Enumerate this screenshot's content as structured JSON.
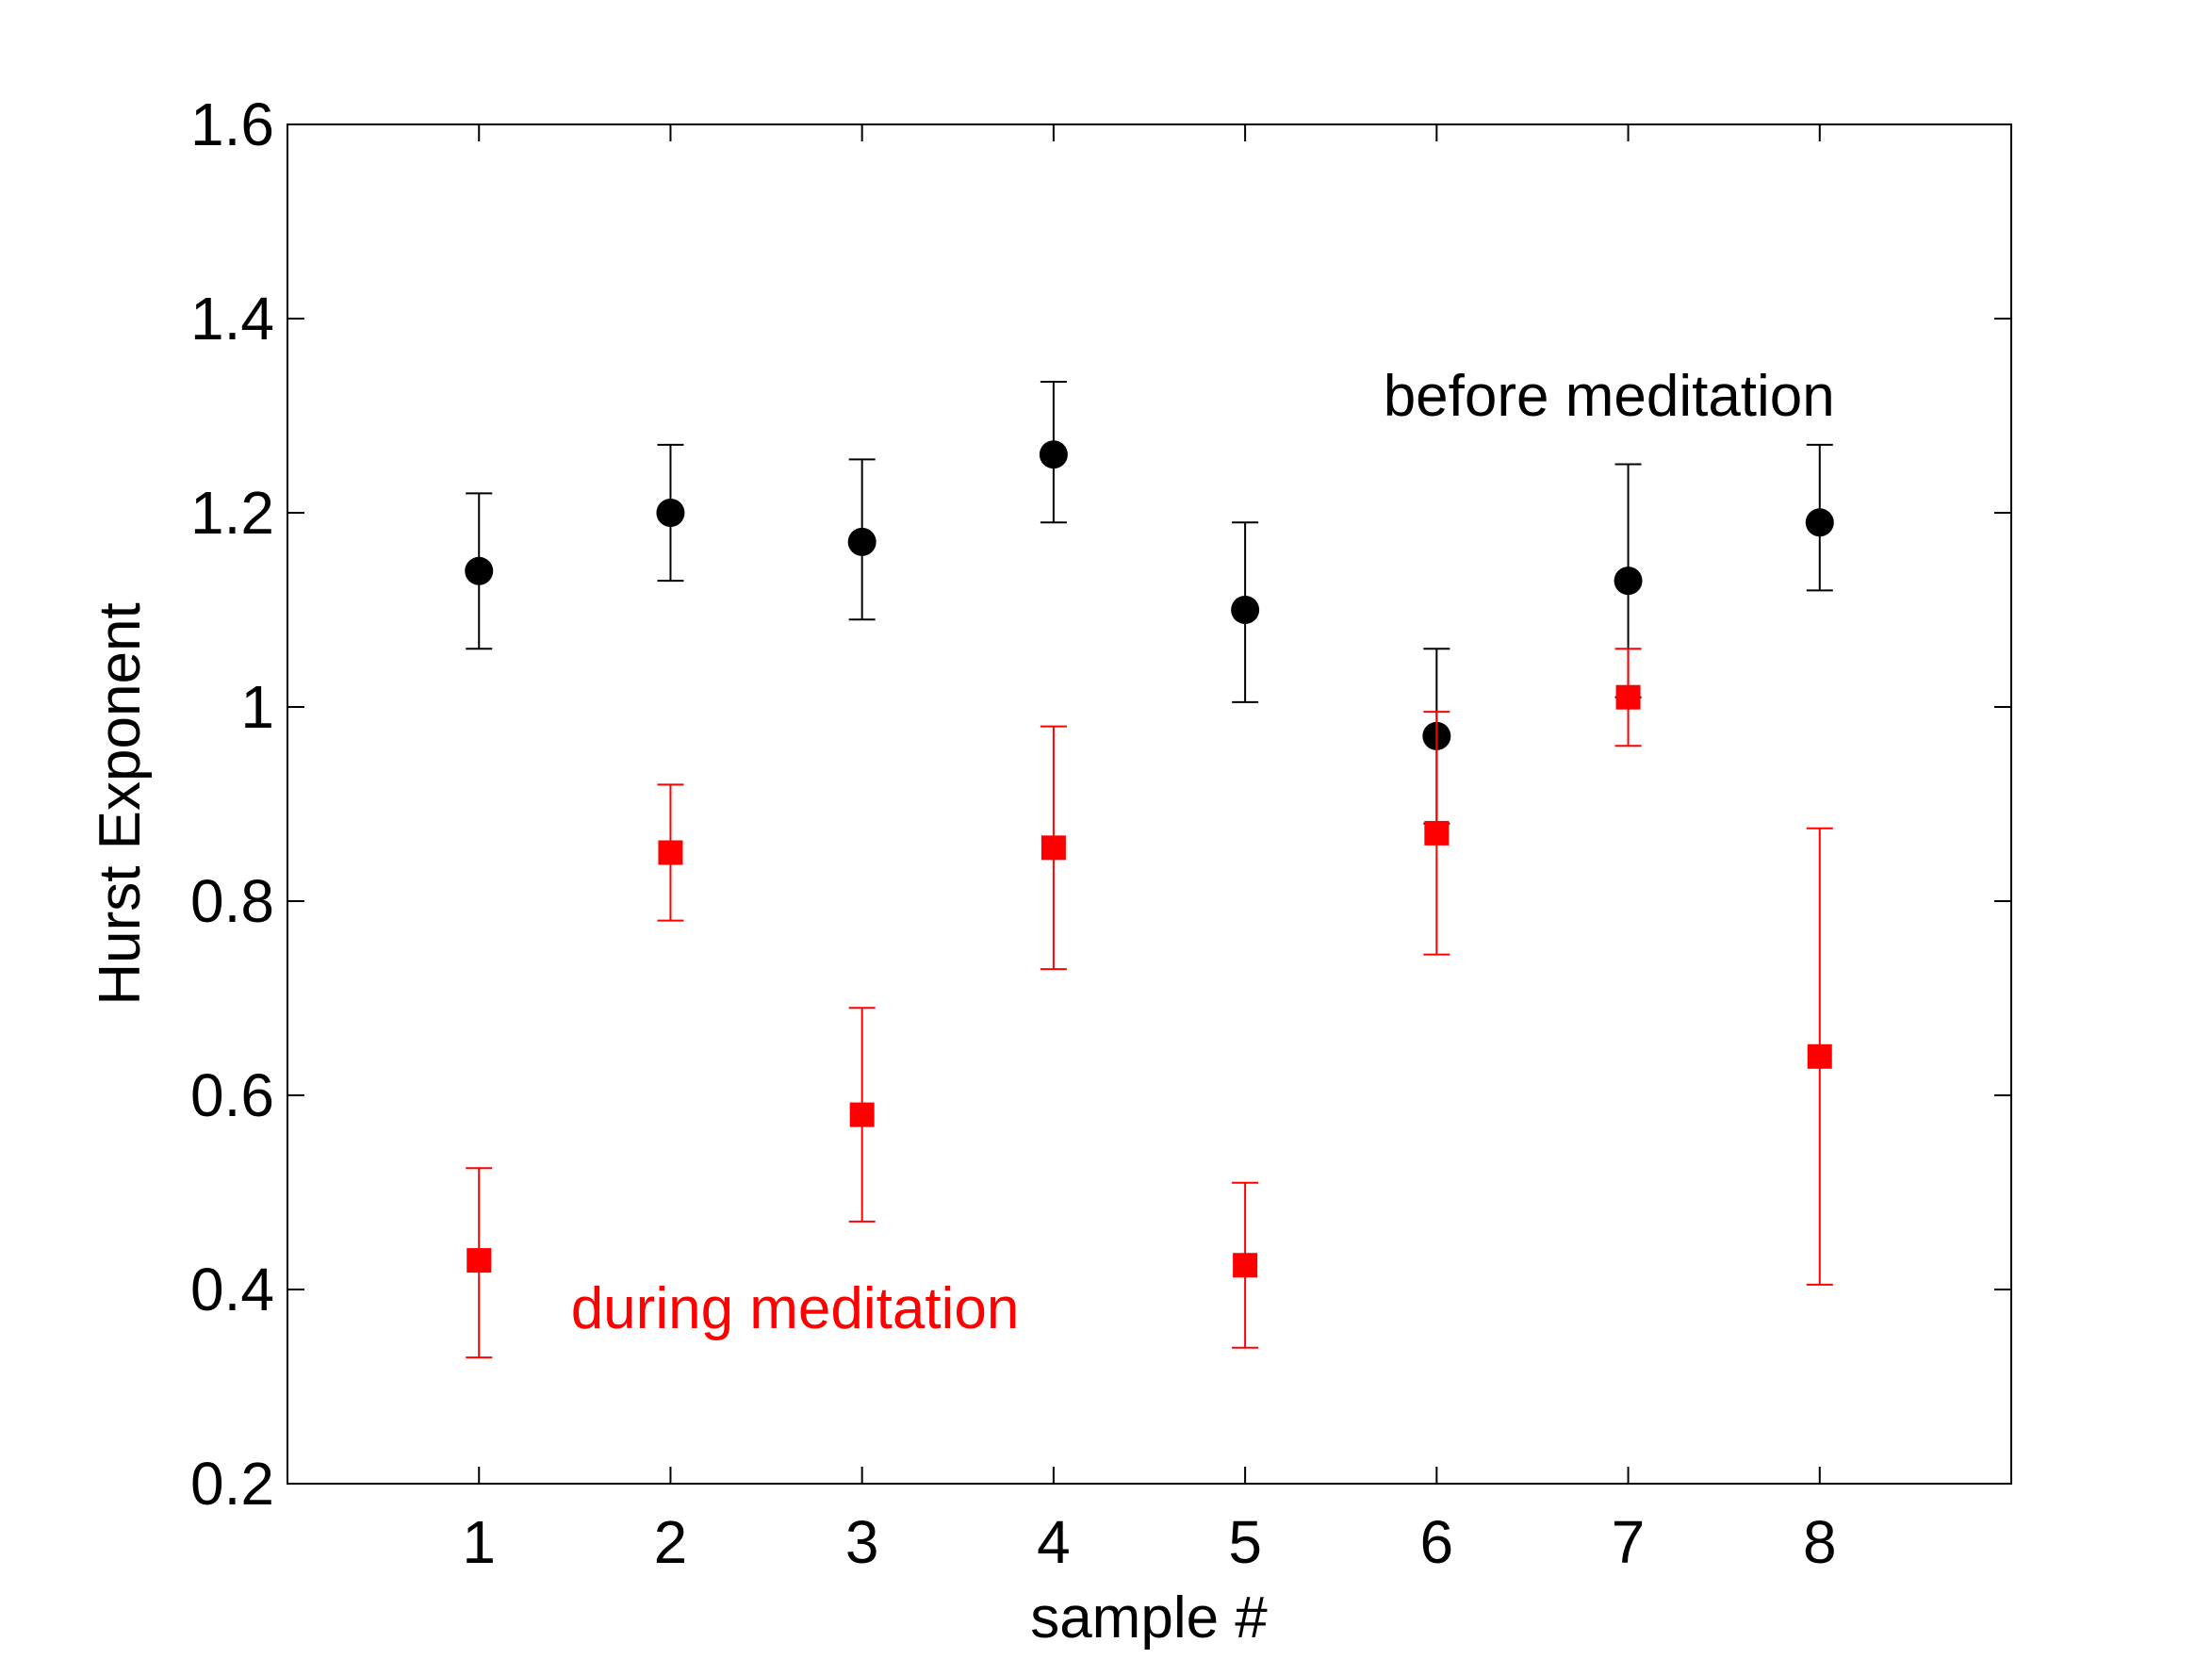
{
  "chart_data": {
    "type": "scatter",
    "title": "",
    "xlabel": "sample #",
    "ylabel": "Hurst Exponent",
    "xlim": [
      0,
      9
    ],
    "ylim": [
      0.2,
      1.6
    ],
    "x_ticks": [
      1,
      2,
      3,
      4,
      5,
      6,
      7,
      8
    ],
    "y_ticks": [
      0.2,
      0.4,
      0.6,
      0.8,
      1.0,
      1.2,
      1.4,
      1.6
    ],
    "y_tick_labels": [
      "0.2",
      "0.4",
      "0.6",
      "0.8",
      "1",
      "1.2",
      "1.4",
      "1.6"
    ],
    "grid": false,
    "series": [
      {
        "name": "before meditation",
        "marker": "circle",
        "color": "#000000",
        "x": [
          1,
          2,
          3,
          4,
          5,
          6,
          7,
          8
        ],
        "y": [
          1.14,
          1.2,
          1.17,
          1.26,
          1.1,
          0.97,
          1.13,
          1.19
        ],
        "err_low": [
          1.06,
          1.13,
          1.09,
          1.19,
          1.005,
          0.88,
          1.01,
          1.12
        ],
        "err_high": [
          1.22,
          1.27,
          1.255,
          1.335,
          1.19,
          1.06,
          1.25,
          1.27
        ]
      },
      {
        "name": "during meditation",
        "marker": "square",
        "color": "#ff0000",
        "x": [
          1,
          2,
          3,
          4,
          5,
          6,
          7,
          8
        ],
        "y": [
          0.43,
          0.85,
          0.58,
          0.855,
          0.425,
          0.87,
          1.01,
          0.64
        ],
        "err_low": [
          0.33,
          0.78,
          0.47,
          0.73,
          0.34,
          0.745,
          0.96,
          0.405
        ],
        "err_high": [
          0.525,
          0.92,
          0.69,
          0.98,
          0.51,
          0.995,
          1.06,
          0.875
        ]
      }
    ],
    "annotations": [
      {
        "text": "before meditation",
        "color": "#000000",
        "x": 6.9,
        "y": 1.3
      },
      {
        "text": "during meditation",
        "color": "#ff0000",
        "x": 2.65,
        "y": 0.36
      }
    ]
  }
}
